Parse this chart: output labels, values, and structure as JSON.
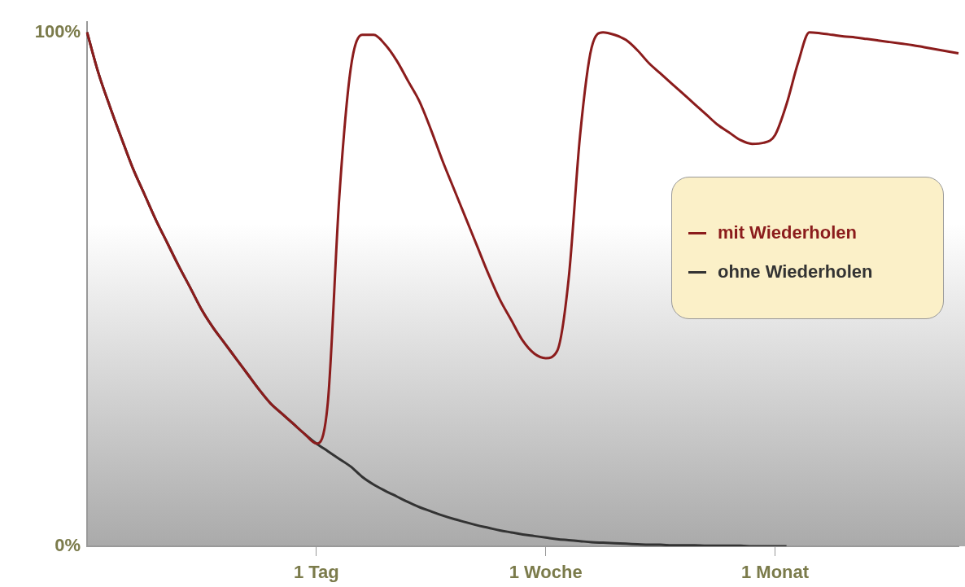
{
  "chart_data": {
    "type": "line",
    "categories": [
      null,
      null,
      null,
      null,
      null,
      null,
      null,
      null,
      null,
      null,
      null,
      null,
      null,
      null,
      null,
      null,
      null,
      null,
      null,
      null,
      "1 Tag",
      null,
      null,
      null,
      null,
      null,
      null,
      null,
      null,
      null,
      null,
      null,
      null,
      null,
      null,
      null,
      null,
      null,
      null,
      null,
      "1 Woche",
      null,
      null,
      null,
      null,
      null,
      null,
      null,
      null,
      null,
      null,
      null,
      null,
      null,
      null,
      null,
      null,
      null,
      null,
      null,
      "1 Monat",
      null,
      null,
      null,
      null,
      null,
      null,
      null,
      null,
      null,
      null,
      null,
      null,
      null,
      null,
      null,
      null
    ],
    "series": [
      {
        "name": "mit Wiederholen",
        "color": "#8b1c1c",
        "values": [
          100,
          92,
          85.5,
          79.4,
          73.5,
          68.5,
          63.5,
          59,
          54.5,
          50.3,
          46,
          42.5,
          39.5,
          36.5,
          33.5,
          30.5,
          27.8,
          25.8,
          23.8,
          21.8,
          20,
          28,
          68,
          93,
          99.5,
          99.5,
          97.6,
          94.5,
          90.5,
          86.5,
          81,
          75,
          69.5,
          64,
          58.5,
          53,
          48,
          44,
          40,
          37.5,
          36.6,
          38,
          52,
          80,
          97,
          100,
          99.5,
          98.5,
          96.5,
          94,
          92,
          90,
          88,
          86,
          84,
          82,
          80.5,
          79,
          78.3,
          78.5,
          80,
          86,
          94,
          100,
          99.8,
          99.5,
          99.2,
          99,
          98.7,
          98.4,
          98.1,
          97.8,
          97.5,
          97.1,
          96.7,
          96.3,
          95.9
        ]
      },
      {
        "name": "ohne Wiederholen",
        "color": "#333333",
        "values": [
          100,
          92,
          85.5,
          79.4,
          73.5,
          68.5,
          63.5,
          59,
          54.5,
          50.3,
          46,
          42.5,
          39.5,
          36.5,
          33.5,
          30.5,
          27.8,
          25.8,
          23.8,
          21.8,
          20,
          18.5,
          17,
          15.5,
          13.5,
          12,
          10.8,
          9.7,
          8.6,
          7.6,
          6.8,
          6,
          5.3,
          4.7,
          4.1,
          3.6,
          3.1,
          2.7,
          2.3,
          2,
          1.7,
          1.4,
          1.2,
          1,
          0.8,
          0.7,
          0.6,
          0.5,
          0.4,
          0.3,
          0.3,
          0.2,
          0.2,
          0.2,
          0.1,
          0.1,
          0.1,
          0.1,
          0,
          0,
          0,
          0,
          null,
          null,
          null,
          null,
          null,
          null,
          null,
          null,
          null,
          null,
          null,
          null,
          null,
          null,
          null
        ]
      }
    ],
    "ylim": [
      0,
      102
    ],
    "yticks": [
      {
        "value": 0,
        "label": "0%"
      },
      {
        "value": 100,
        "label": "100%"
      }
    ],
    "grid": false,
    "legend": "right",
    "marker": "none",
    "line_style": "solid"
  }
}
